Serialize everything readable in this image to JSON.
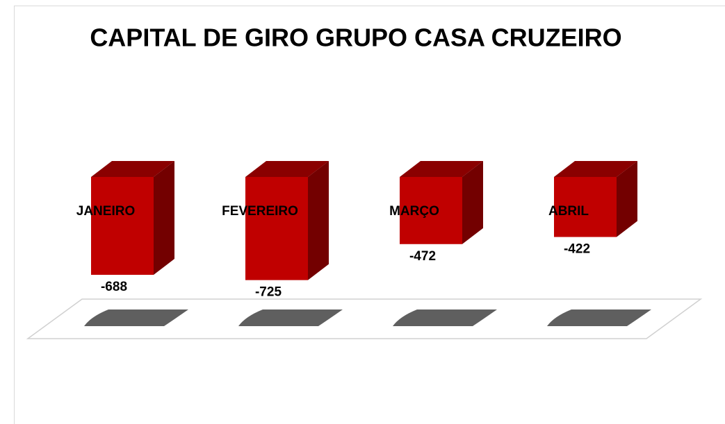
{
  "chart_data": {
    "type": "bar",
    "title": "CAPITAL DE GIRO GRUPO CASA CRUZEIRO",
    "categories": [
      "JANEIRO",
      "FEVEREIRO",
      "MARÇO",
      "ABRIL"
    ],
    "values": [
      -688,
      -725,
      -472,
      -422
    ],
    "color": "#c00000"
  }
}
